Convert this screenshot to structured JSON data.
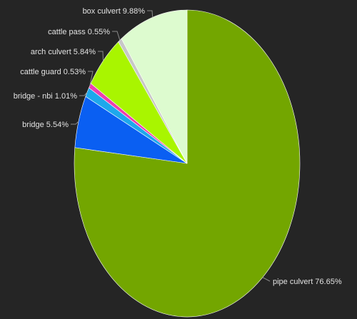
{
  "chart_data": {
    "type": "pie",
    "title": "",
    "background": "#252525",
    "label_color": "#e2e2e2",
    "slices": [
      {
        "label": "pipe culvert",
        "value": 76.65,
        "display": "pipe culvert 76.65%",
        "color": "#73a600"
      },
      {
        "label": "bridge",
        "value": 5.54,
        "display": "bridge 5.54%",
        "color": "#0a5ff2"
      },
      {
        "label": "bridge - nbi",
        "value": 1.01,
        "display": "bridge - nbi 1.01%",
        "color": "#1ea8ec"
      },
      {
        "label": "cattle guard",
        "value": 0.53,
        "display": "cattle guard 0.53%",
        "color": "#ee3fae"
      },
      {
        "label": "arch culvert",
        "value": 5.84,
        "display": "arch culvert 5.84%",
        "color": "#a9f500"
      },
      {
        "label": "cattle pass",
        "value": 0.55,
        "display": "cattle pass 0.55%",
        "color": "#c8c8c8"
      },
      {
        "label": "box culvert",
        "value": 9.88,
        "display": "box culvert 9.88%",
        "color": "#ddfbcf"
      }
    ]
  }
}
